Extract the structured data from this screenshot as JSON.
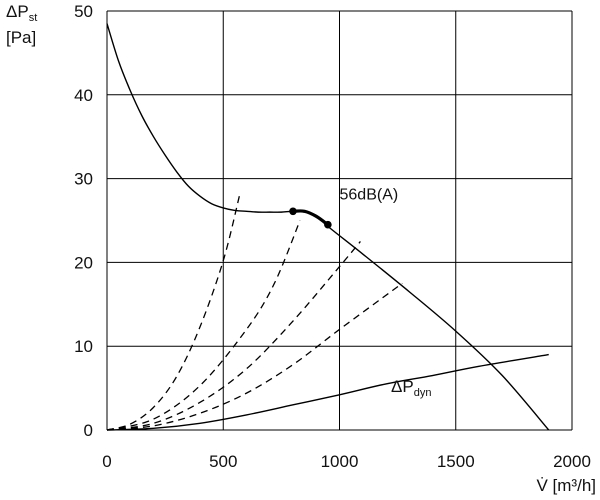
{
  "chart_data": {
    "type": "line",
    "title": "",
    "ylabel": {
      "main": "ΔP",
      "sub": "st",
      "unit": "[Pa]"
    },
    "xlabel": "V̇ [m³/h]",
    "xlim": [
      0,
      2000
    ],
    "ylim": [
      0,
      50
    ],
    "xticks": [
      0,
      500,
      1000,
      1500,
      2000
    ],
    "yticks": [
      0,
      10,
      20,
      30,
      40,
      50
    ],
    "grid": true,
    "series": [
      {
        "style": "solid",
        "points": [
          [
            0,
            48.5
          ],
          [
            50,
            44
          ],
          [
            100,
            40.5
          ],
          [
            150,
            37.5
          ],
          [
            200,
            35
          ],
          [
            250,
            32.8
          ],
          [
            300,
            30.8
          ],
          [
            350,
            29.1
          ],
          [
            400,
            27.9
          ],
          [
            450,
            27
          ],
          [
            500,
            26.5
          ],
          [
            550,
            26.2
          ],
          [
            600,
            26.1
          ],
          [
            650,
            26
          ],
          [
            700,
            26
          ],
          [
            750,
            26
          ],
          [
            800,
            26.1
          ],
          [
            850,
            26
          ],
          [
            900,
            25.6
          ],
          [
            950,
            24.3
          ],
          [
            1100,
            21
          ],
          [
            1300,
            16.5
          ],
          [
            1500,
            11.8
          ],
          [
            1700,
            6.5
          ],
          [
            1900,
            0
          ]
        ]
      },
      {
        "style": "bold",
        "points": [
          [
            800,
            26.1
          ],
          [
            850,
            26.1
          ],
          [
            900,
            25.5
          ],
          [
            950,
            24.5
          ]
        ]
      },
      {
        "style": "solid",
        "name_main": "ΔP",
        "name_sub": "dyn",
        "points": [
          [
            0,
            0
          ],
          [
            200,
            0.2
          ],
          [
            400,
            0.8
          ],
          [
            600,
            1.8
          ],
          [
            800,
            3
          ],
          [
            1000,
            4.2
          ],
          [
            1200,
            5.5
          ],
          [
            1400,
            6.5
          ],
          [
            1600,
            7.6
          ],
          [
            1900,
            9
          ]
        ]
      },
      {
        "style": "dashed",
        "points": [
          [
            0,
            0
          ],
          [
            100,
            0.7
          ],
          [
            200,
            2.7
          ],
          [
            300,
            6.4
          ],
          [
            400,
            12.3
          ],
          [
            500,
            20.2
          ],
          [
            570,
            28
          ]
        ]
      },
      {
        "style": "dashed",
        "points": [
          [
            0,
            0
          ],
          [
            200,
            1.3
          ],
          [
            400,
            5.3
          ],
          [
            600,
            12
          ],
          [
            720,
            17.5
          ],
          [
            830,
            25
          ]
        ]
      },
      {
        "style": "dashed",
        "points": [
          [
            0,
            0
          ],
          [
            200,
            0.8
          ],
          [
            400,
            3.3
          ],
          [
            600,
            7.3
          ],
          [
            800,
            13
          ],
          [
            1000,
            19.5
          ],
          [
            1090,
            22.5
          ]
        ]
      },
      {
        "style": "dashed",
        "points": [
          [
            0,
            0
          ],
          [
            200,
            0.5
          ],
          [
            400,
            2
          ],
          [
            600,
            4.4
          ],
          [
            800,
            7.8
          ],
          [
            1000,
            12
          ],
          [
            1270,
            17.5
          ]
        ]
      }
    ],
    "markers": [
      [
        800,
        26.1
      ],
      [
        950,
        24.5
      ]
    ],
    "annotations": [
      {
        "text": "56dB(A)",
        "at": [
          1000,
          27.5
        ]
      }
    ]
  }
}
